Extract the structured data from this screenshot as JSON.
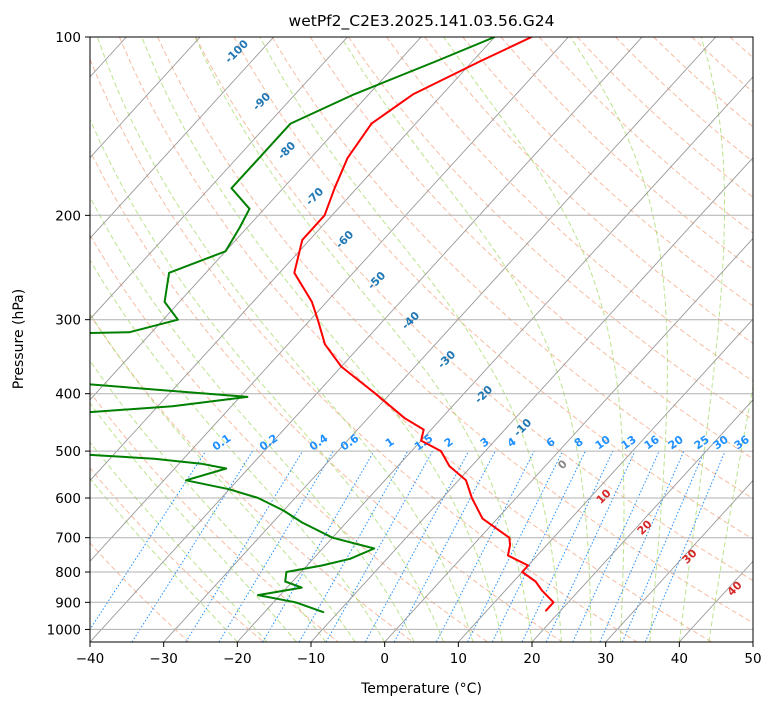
{
  "chart_data": {
    "type": "line",
    "diagram": "skew-T log-p",
    "title": "wetPf2_C2E3.2025.141.03.56.G24",
    "xlabel": "Temperature (°C)",
    "ylabel": "Pressure (hPa)",
    "xlim": [
      -40,
      50
    ],
    "ylim": [
      1050,
      100
    ],
    "y_scale": "log",
    "skew": true,
    "x_ticks": [
      -40,
      -30,
      -20,
      -10,
      0,
      10,
      20,
      30,
      40,
      50
    ],
    "y_ticks": [
      100,
      200,
      300,
      400,
      500,
      600,
      700,
      800,
      900,
      1000
    ],
    "grid": true,
    "colors": {
      "temperature": "#ff0000",
      "dewpoint": "#008000",
      "dry_adiabats": "#f4a582",
      "moist_adiabats": "#a6d96a",
      "mixing_ratio": "#1e90ff",
      "isotherms": "#999999",
      "isotherm_labels": "#d62728",
      "adiabat_labels": "#1f77b4"
    },
    "series": [
      {
        "name": "Temperature",
        "color": "#ff0000",
        "points": [
          {
            "p": 100,
            "t": -55
          },
          {
            "p": 110,
            "t": -59
          },
          {
            "p": 125,
            "t": -64
          },
          {
            "p": 140,
            "t": -66
          },
          {
            "p": 160,
            "t": -65
          },
          {
            "p": 180,
            "t": -63
          },
          {
            "p": 200,
            "t": -61
          },
          {
            "p": 220,
            "t": -61
          },
          {
            "p": 250,
            "t": -58
          },
          {
            "p": 280,
            "t": -52
          },
          {
            "p": 300,
            "t": -49
          },
          {
            "p": 330,
            "t": -45
          },
          {
            "p": 360,
            "t": -40
          },
          {
            "p": 400,
            "t": -32
          },
          {
            "p": 440,
            "t": -25
          },
          {
            "p": 460,
            "t": -21
          },
          {
            "p": 480,
            "t": -20
          },
          {
            "p": 500,
            "t": -16
          },
          {
            "p": 530,
            "t": -13
          },
          {
            "p": 560,
            "t": -9
          },
          {
            "p": 600,
            "t": -6
          },
          {
            "p": 650,
            "t": -2
          },
          {
            "p": 700,
            "t": 4
          },
          {
            "p": 720,
            "t": 5
          },
          {
            "p": 750,
            "t": 6
          },
          {
            "p": 780,
            "t": 10
          },
          {
            "p": 800,
            "t": 10
          },
          {
            "p": 830,
            "t": 13
          },
          {
            "p": 860,
            "t": 15
          },
          {
            "p": 900,
            "t": 18
          },
          {
            "p": 930,
            "t": 18
          }
        ]
      },
      {
        "name": "Dewpoint",
        "color": "#008000",
        "points": [
          {
            "p": 100,
            "t": -60
          },
          {
            "p": 110,
            "t": -65
          },
          {
            "p": 125,
            "t": -72
          },
          {
            "p": 140,
            "t": -77
          },
          {
            "p": 160,
            "t": -77
          },
          {
            "p": 180,
            "t": -77
          },
          {
            "p": 195,
            "t": -72
          },
          {
            "p": 210,
            "t": -71
          },
          {
            "p": 230,
            "t": -70
          },
          {
            "p": 250,
            "t": -75
          },
          {
            "p": 280,
            "t": -72
          },
          {
            "p": 300,
            "t": -68
          },
          {
            "p": 315,
            "t": -73
          },
          {
            "p": 320,
            "t": -102
          },
          {
            "p": 340,
            "t": -104
          },
          {
            "p": 360,
            "t": -97
          },
          {
            "p": 365,
            "t": -99
          },
          {
            "p": 370,
            "t": -94
          },
          {
            "p": 380,
            "t": -79
          },
          {
            "p": 405,
            "t": -49
          },
          {
            "p": 420,
            "t": -58
          },
          {
            "p": 455,
            "t": -94
          },
          {
            "p": 460,
            "t": -111
          },
          {
            "p": 470,
            "t": -110
          },
          {
            "p": 490,
            "t": -101
          },
          {
            "p": 505,
            "t": -66
          },
          {
            "p": 515,
            "t": -54
          },
          {
            "p": 525,
            "t": -47
          },
          {
            "p": 535,
            "t": -43
          },
          {
            "p": 560,
            "t": -47
          },
          {
            "p": 580,
            "t": -40
          },
          {
            "p": 600,
            "t": -35
          },
          {
            "p": 630,
            "t": -30
          },
          {
            "p": 660,
            "t": -26
          },
          {
            "p": 700,
            "t": -20
          },
          {
            "p": 730,
            "t": -13
          },
          {
            "p": 760,
            "t": -15
          },
          {
            "p": 780,
            "t": -18
          },
          {
            "p": 800,
            "t": -22
          },
          {
            "p": 830,
            "t": -21
          },
          {
            "p": 850,
            "t": -18
          },
          {
            "p": 875,
            "t": -23
          },
          {
            "p": 900,
            "t": -17
          },
          {
            "p": 935,
            "t": -12
          }
        ]
      }
    ],
    "dry_adiabat_labels": [
      "-100",
      "-90",
      "-80",
      "-70",
      "-60",
      "-50",
      "-40",
      "-30",
      "-20",
      "-10"
    ],
    "mixing_ratio_labels": [
      "0.1",
      "0.2",
      "0.4",
      "0.6",
      "1",
      "1.5",
      "2",
      "3",
      "4",
      "6",
      "8",
      "10",
      "13",
      "16",
      "20",
      "25",
      "30",
      "36"
    ],
    "moist_adiabat_labels": [
      "0",
      "10",
      "20",
      "30",
      "40"
    ]
  }
}
